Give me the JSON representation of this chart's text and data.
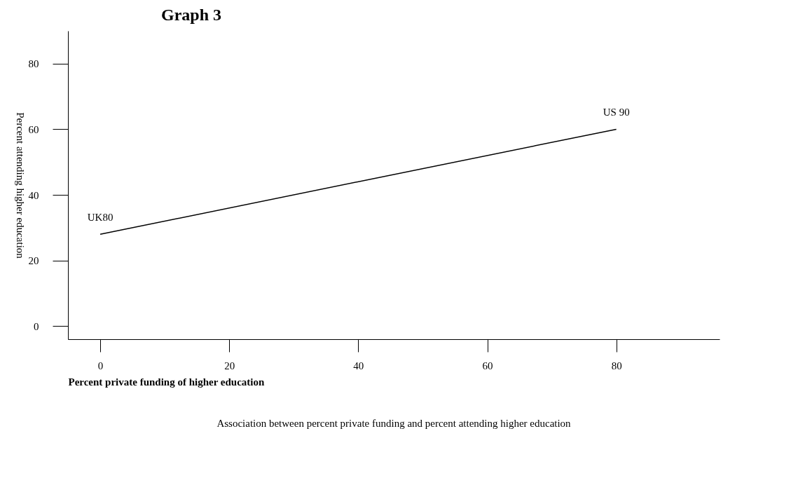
{
  "chart_data": {
    "type": "line",
    "title": "Graph 3",
    "xlabel": "Percent private funding of higher education",
    "ylabel": "Percent attending higher education",
    "x": [
      0,
      80
    ],
    "values": [
      28,
      60
    ],
    "color": "#000000",
    "xlim": [
      -5,
      96
    ],
    "xticks": [
      0,
      20,
      40,
      60,
      80
    ],
    "ylim": [
      -4,
      90
    ],
    "yticks": [
      0,
      20,
      40,
      60,
      80
    ],
    "grid": false,
    "marker": "none",
    "line_style": "solid",
    "annotations": [
      {
        "text": "UK80",
        "x": 0,
        "y": 28
      },
      {
        "text": "US 90",
        "x": 80,
        "y": 60
      },
      "Association between percent private funding and percent attending higher education"
    ]
  }
}
